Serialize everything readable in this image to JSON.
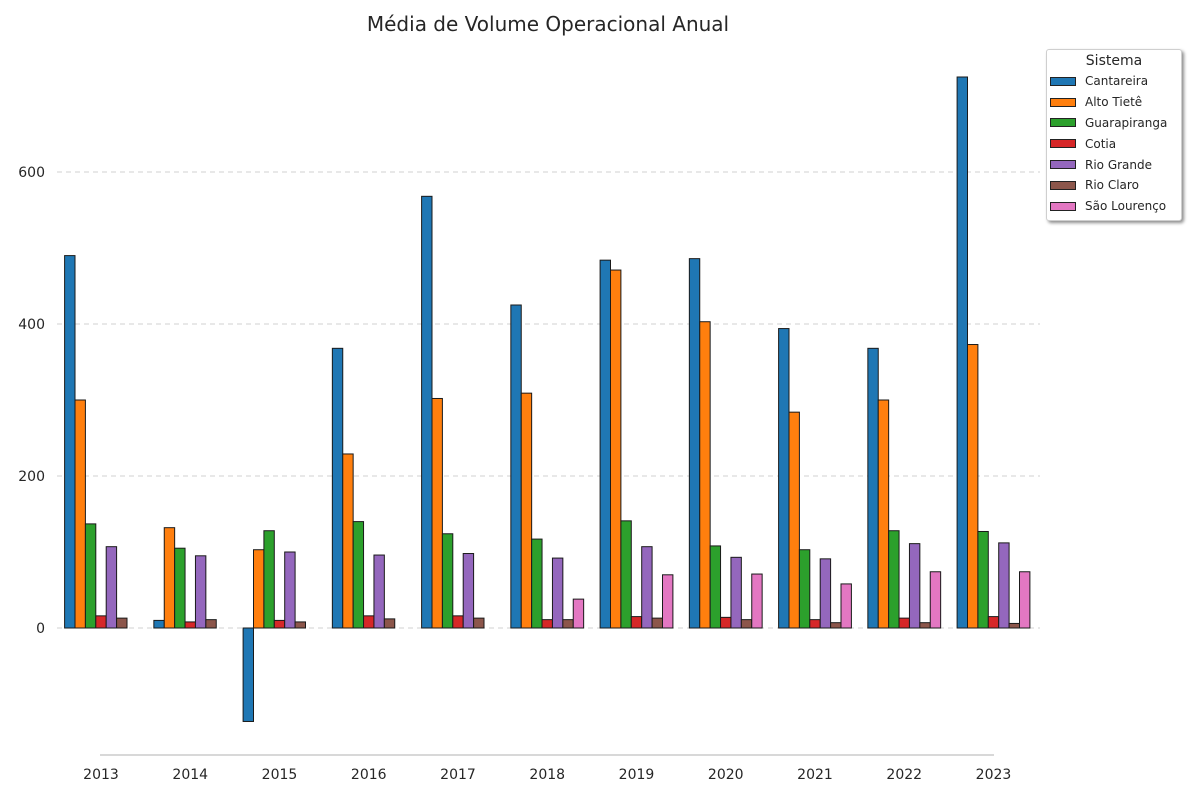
{
  "chart_data": {
    "type": "bar",
    "title": "Média de Volume Operacional Anual",
    "xlabel": "",
    "ylabel": "",
    "ylim": [
      -160,
      750
    ],
    "yticks": [
      0,
      200,
      400,
      600
    ],
    "grid": "y-dashed",
    "legend_title": "Sistema",
    "legend_placement": "top-right-outside",
    "categories": [
      "2013",
      "2014",
      "2015",
      "2016",
      "2017",
      "2018",
      "2019",
      "2020",
      "2021",
      "2022",
      "2023"
    ],
    "series": [
      {
        "name": "Cantareira",
        "color": "#1f77b4",
        "values": [
          490,
          10,
          -123,
          368,
          568,
          425,
          484,
          486,
          394,
          368,
          725
        ]
      },
      {
        "name": "Alto Tietê",
        "color": "#ff7f0e",
        "values": [
          300,
          132,
          103,
          229,
          302,
          309,
          471,
          403,
          284,
          300,
          373
        ]
      },
      {
        "name": "Guarapiranga",
        "color": "#2ca02c",
        "values": [
          137,
          105,
          128,
          140,
          124,
          117,
          141,
          108,
          103,
          128,
          127
        ]
      },
      {
        "name": "Cotia",
        "color": "#d62728",
        "values": [
          16,
          8,
          10,
          16,
          16,
          11,
          15,
          14,
          11,
          13,
          15
        ]
      },
      {
        "name": "Rio Grande",
        "color": "#9467bd",
        "values": [
          107,
          95,
          100,
          96,
          98,
          92,
          107,
          93,
          91,
          111,
          112
        ]
      },
      {
        "name": "Rio Claro",
        "color": "#8c564b",
        "values": [
          13,
          11,
          8,
          12,
          13,
          11,
          13,
          11,
          7,
          7,
          6
        ]
      },
      {
        "name": "São Lourenço",
        "color": "#e377c2",
        "values": [
          null,
          null,
          null,
          null,
          null,
          38,
          70,
          71,
          58,
          74,
          74
        ]
      }
    ]
  }
}
